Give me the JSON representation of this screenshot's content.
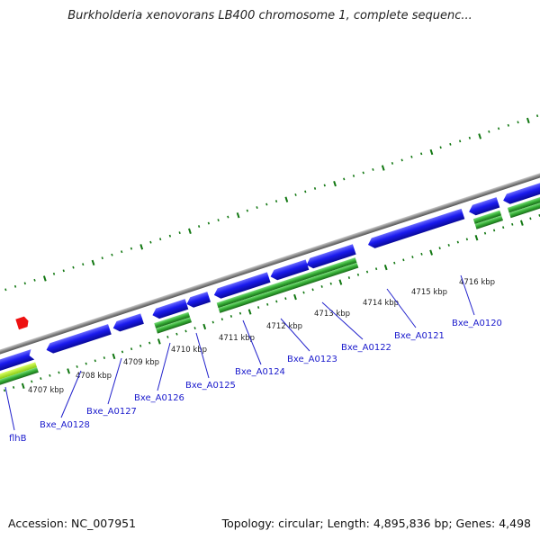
{
  "title": "Burkholderia xenovorans LB400 chromosome 1, complete sequenc...",
  "footer": {
    "accession": "Accession: NC_007951",
    "summary": "Topology: circular; Length: 4,895,836 bp; Genes: 4,498"
  },
  "scale_labels": [
    "4707 kbp",
    "4708 kbp",
    "4709 kbp",
    "4710 kbp",
    "4711 kbp",
    "4712 kbp",
    "4713 kbp",
    "4714 kbp",
    "4715 kbp",
    "4716 kbp"
  ],
  "gene_labels": [
    "flhB",
    "Bxe_A0128",
    "Bxe_A0127",
    "Bxe_A0126",
    "Bxe_A0125",
    "Bxe_A0124",
    "Bxe_A0123",
    "Bxe_A0122",
    "Bxe_A0121",
    "Bxe_A0120"
  ],
  "colors": {
    "gene_blue": "#1a1aee",
    "cds_green": "#33aa33",
    "highlight_yellowgreen": "#aaee22",
    "marker_red": "#ee1111",
    "tick_green": "#117711",
    "backbone_grey": "#888888",
    "label_blue": "#1a1acc"
  }
}
